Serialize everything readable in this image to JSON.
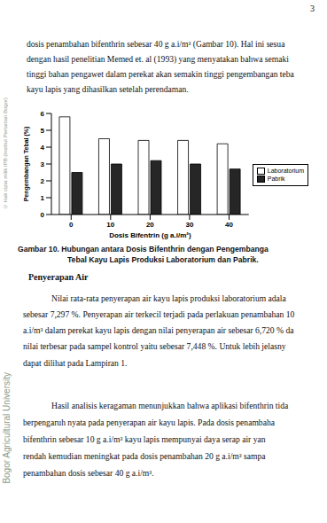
{
  "page_number": "3",
  "top_lines": [
    "dosis penambahan bifenthrin sebesar 40 g a.i/m³ (Gambar 10). Hal ini sesua",
    "dengan hasil penelitian Memed et. al (1993) yang menyatakan bahwa semaki",
    "tinggi bahan pengawet dalam perekat akan semakin tinggi pengembangan teba",
    "kayu lapis yang dihasilkan setelah perendaman."
  ],
  "chart_data": {
    "type": "bar",
    "x_label": "Dosis Bifentrin (g a.i/m²)",
    "y_label": "Pengembangan Tebal (%)",
    "categories": [
      "0",
      "10",
      "20",
      "30",
      "40"
    ],
    "series": [
      {
        "name": "Laboratorium",
        "color": "#ffffff",
        "values": [
          5.8,
          4.5,
          4.4,
          4.4,
          4.2
        ]
      },
      {
        "name": "Pabrik",
        "color": "#262626",
        "values": [
          2.5,
          3.0,
          3.2,
          3.0,
          2.7
        ]
      }
    ],
    "ylim": [
      0,
      6
    ],
    "yticks": [
      0,
      1,
      2,
      3,
      4,
      5,
      6
    ],
    "grid": false,
    "legend": "right"
  },
  "caption": [
    "Gambar 10.  Hubungan antara Dosis Bifenthrin dengan Pengembanga",
    "Tebal  Kayu Lapis Produksi Laboratorium dan Pabrik."
  ],
  "heading": "Penyerapan Air",
  "paragraph_1": [
    "Nilai rata-rata penyerapan air kayu lapis produksi laboratorium adala",
    "sebesar 7,297 %. Penyerapan air terkecil terjadi pada perlakuan penambahan 10",
    "a.i/m³  dalam perekat kayu lapis dengan nilai penyerapan air sebesar 6,720 % da",
    "nilai terbesar pada sampel kontrol yaitu sebesar 7,448 %. Untuk lebih jelasny",
    "dapat dilihat pada Lampiran 1."
  ],
  "paragraph_2": [
    "Hasil analisis keragaman menunjukkan bahwa aplikasi bifenthrin tida",
    "berpengaruh nyata pada penyerapan air kayu lapis. Pada dosis penambaha",
    "bifenthrin sebesar 10 g a.i/m³ kayu lapis mempunyai daya serap air yan",
    "rendah kemudian meningkat pada dosis penambahan 20 g a.i/m³ sampa",
    "penambahan dosis sebesar 40 g a.i/m³."
  ],
  "watermark_1": "© Hak cipta milik IPB (Institut Pertanian Bogor)",
  "watermark_2": "Bogor Agricultural University"
}
